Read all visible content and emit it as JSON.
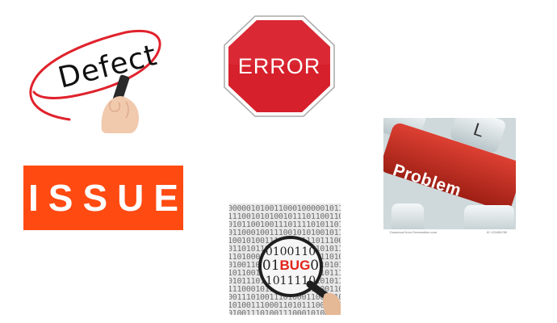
{
  "defect": {
    "text": "Defect"
  },
  "error": {
    "text": "ERROR"
  },
  "issue": {
    "text": "ISSUE"
  },
  "problem": {
    "text": "Problem",
    "footer_left": "Download from Dreamstime.com",
    "footer_right": "ID 123456789"
  },
  "bug": {
    "binary_background": [
      "0000010100110001000001011001",
      "1110010101001011101100110",
      "0101100100111011110101101",
      "0110001001110010101001011",
      "1001010011100010111011100",
      "0110101100010100110101011",
      "1101000110010111010011010",
      "0100110111010001100110101",
      "1011001100101110100110111",
      "0101110100111000110101011",
      "1110001011010100011100110",
      "0011101001110100011001110",
      "1010011100011010111001010",
      "0100111010011100010100111"
    ],
    "lens_top": "0100110",
    "lens_left": "01",
    "lens_word": "BUG",
    "lens_right": "0",
    "lens_bottom": "1011110"
  },
  "colors": {
    "error_red": "#d6202b",
    "issue_orange": "#ff4a12",
    "problem_red": "#c2281c",
    "defect_circle": "#e0222c",
    "bug_red": "#e3231a"
  }
}
